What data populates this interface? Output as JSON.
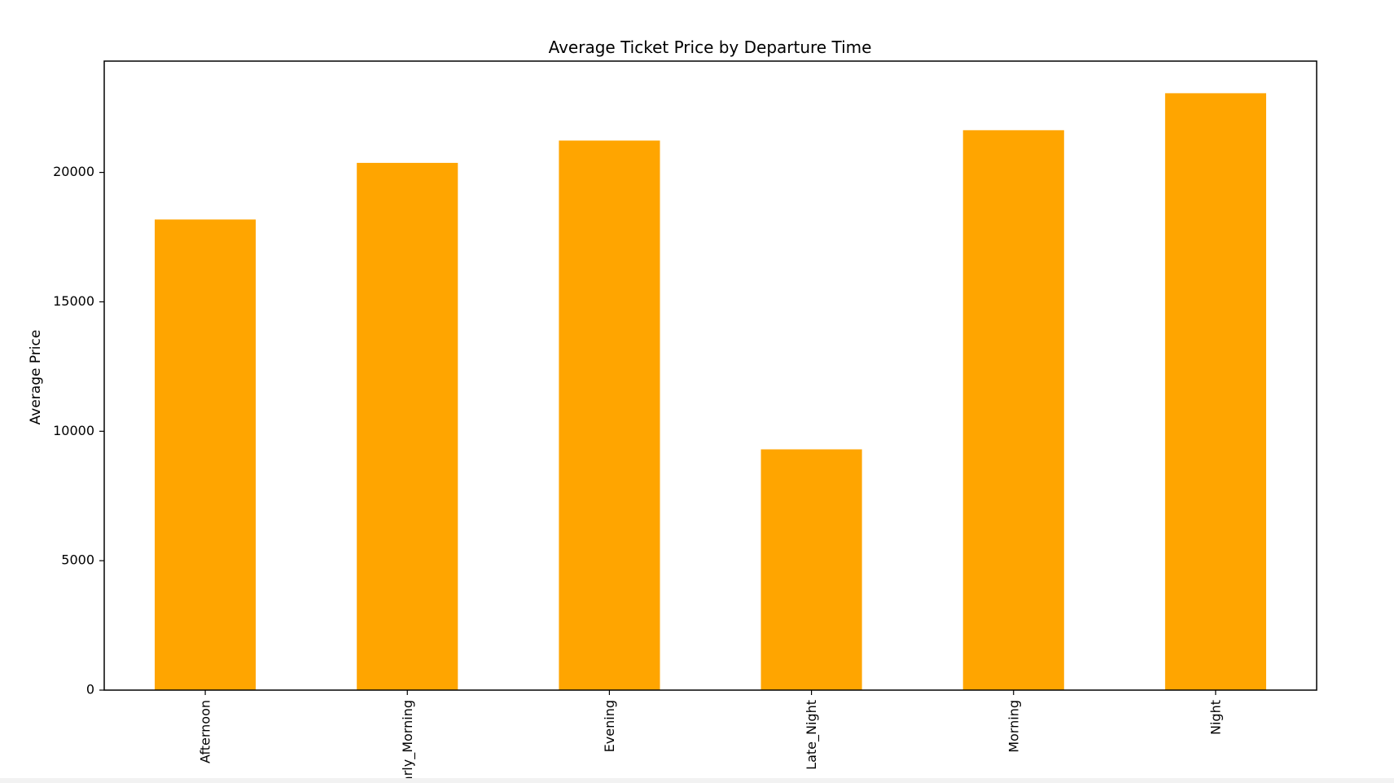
{
  "chart_data": {
    "type": "bar",
    "title": "Average Ticket Price by Departure Time",
    "xlabel": "",
    "ylabel": "Average Price",
    "categories": [
      "Afternoon",
      "Early_Morning",
      "Evening",
      "Late_Night",
      "Morning",
      "Night"
    ],
    "values": [
      18180,
      20370,
      21230,
      9300,
      21630,
      23060
    ],
    "ylim": [
      0,
      24300
    ],
    "yticks": [
      0,
      5000,
      10000,
      15000,
      20000
    ],
    "bar_color": "#FFA500",
    "grid": false,
    "legend": null
  }
}
